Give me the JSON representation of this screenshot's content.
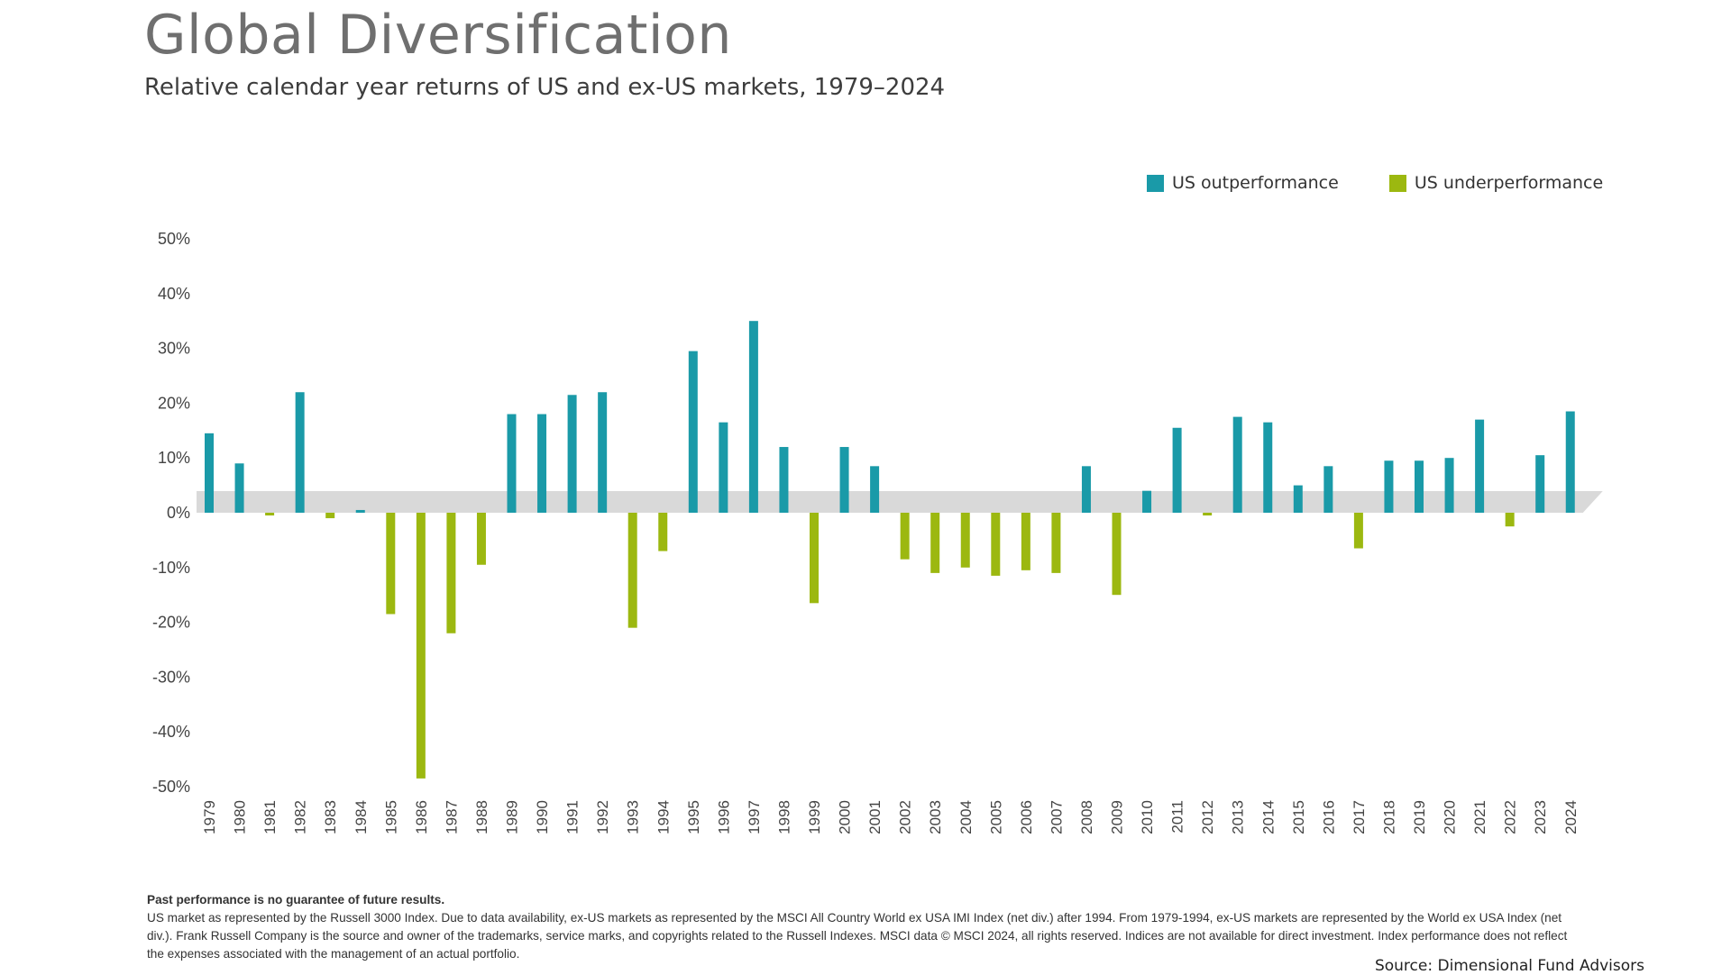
{
  "title": "Global Diversification",
  "subtitle": "Relative calendar year returns of US and ex-US markets, 1979–2024",
  "legend": {
    "outperformance": "US outperformance",
    "underperformance": "US underperformance"
  },
  "colors": {
    "outperformance": "#1a9aa8",
    "underperformance": "#9cb810",
    "zero_band": "#d9d9d9",
    "axis_text": "#444444"
  },
  "footnote": {
    "bold": "Past performance is no guarantee of future results.",
    "text": "US market as represented by the Russell 3000 Index. Due to data availability, ex-US markets as represented by the MSCI All Country World ex USA IMI Index (net div.) after 1994. From 1979-1994, ex-US markets are represented by the World ex USA Index (net div.). Frank Russell Company is the source and owner of the trademarks, service marks, and copyrights related to the Russell Indexes. MSCI data © MSCI 2024, all rights reserved. Indices are not available for direct investment. Index performance does not reflect the expenses associated with the management of an actual portfolio."
  },
  "source": "Source: Dimensional Fund Advisors",
  "chart_data": {
    "type": "bar",
    "title": "Global Diversification",
    "subtitle": "Relative calendar year returns of US and ex-US markets, 1979–2024",
    "xlabel": "",
    "ylabel": "",
    "ylim": [
      -50,
      50
    ],
    "yticks": [
      50,
      40,
      30,
      20,
      10,
      0,
      -10,
      -20,
      -30,
      -40,
      -50
    ],
    "ytick_labels": [
      "50%",
      "40%",
      "30%",
      "20%",
      "10%",
      "0%",
      "-10%",
      "-20%",
      "-30%",
      "-40%",
      "-50%"
    ],
    "grid": false,
    "legend_position": "top-right",
    "categories": [
      "1979",
      "1980",
      "1981",
      "1982",
      "1983",
      "1984",
      "1985",
      "1986",
      "1987",
      "1988",
      "1989",
      "1990",
      "1991",
      "1992",
      "1993",
      "1994",
      "1995",
      "1996",
      "1997",
      "1998",
      "1999",
      "2000",
      "2001",
      "2002",
      "2003",
      "2004",
      "2005",
      "2006",
      "2007",
      "2008",
      "2009",
      "2010",
      "2011",
      "2012",
      "2013",
      "2014",
      "2015",
      "2016",
      "2017",
      "2018",
      "2019",
      "2020",
      "2021",
      "2022",
      "2023",
      "2024"
    ],
    "values": [
      14.5,
      9,
      -0.5,
      22,
      -1,
      0.5,
      -18.5,
      -48.5,
      -22,
      -9.5,
      18,
      18,
      21.5,
      22,
      -21,
      -7,
      29.5,
      16.5,
      35,
      12,
      -16.5,
      12,
      8.5,
      -8.5,
      -11,
      -10,
      -11.5,
      -10.5,
      -11,
      8.5,
      -15,
      4,
      15.5,
      -0.5,
      17.5,
      16.5,
      5,
      8.5,
      -6.5,
      9.5,
      9.5,
      10,
      17,
      -2.5,
      10.5,
      18.5
    ],
    "series": [
      {
        "name": "US outperformance",
        "rule": "value > 0"
      },
      {
        "name": "US underperformance",
        "rule": "value < 0"
      }
    ]
  }
}
